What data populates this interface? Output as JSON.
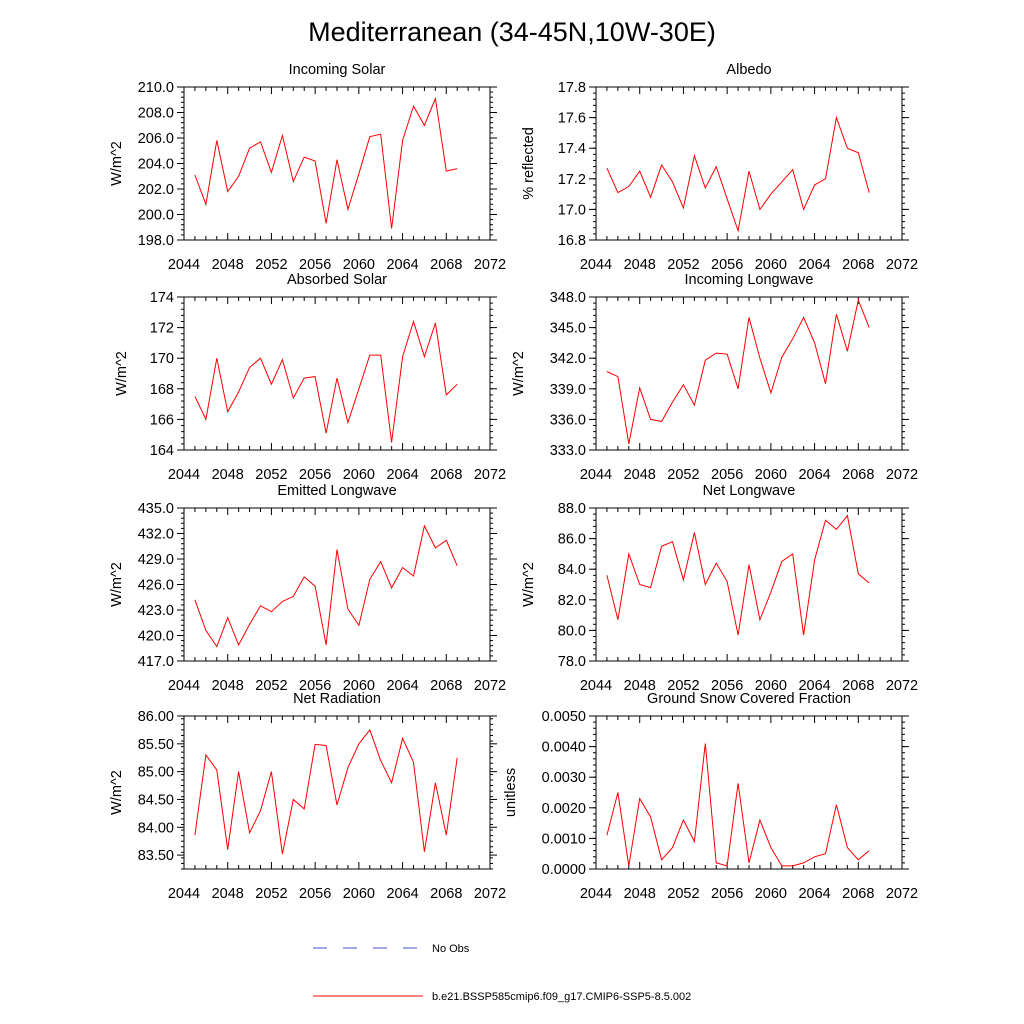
{
  "figure": {
    "title": "Mediterranean (34-45N,10W-30E)"
  },
  "colors": {
    "series": "#ff0000",
    "obs": "#4455cc",
    "axis": "#000000"
  },
  "legend": {
    "entries": [
      {
        "label": "No Obs",
        "style": "dashed",
        "color": "#4455cc"
      },
      {
        "label": "b.e21.BSSP585cmip6.f09_g17.CMIP6-SSP5-8.5.002",
        "style": "solid",
        "color": "#ff0000"
      }
    ]
  },
  "chart_data": [
    {
      "type": "line",
      "title": "Incoming Solar",
      "ylabel": "W/m^2",
      "xlim": [
        2044,
        2072
      ],
      "xticks": [
        2044,
        2048,
        2052,
        2056,
        2060,
        2064,
        2068,
        2072
      ],
      "ylim": [
        198,
        210
      ],
      "yticks": [
        "198.0",
        "200.0",
        "202.0",
        "204.0",
        "206.0",
        "208.0",
        "210.0"
      ],
      "x": [
        2045,
        2046,
        2047,
        2048,
        2049,
        2050,
        2051,
        2052,
        2053,
        2054,
        2055,
        2056,
        2057,
        2058,
        2059,
        2060,
        2061,
        2062,
        2063,
        2064,
        2065,
        2066,
        2067,
        2068,
        2069
      ],
      "series": [
        {
          "name": "b.e21.BSSP585cmip6.f09_g17.CMIP6-SSP5-8.5.002",
          "values": [
            203.1,
            200.8,
            205.8,
            201.8,
            203.0,
            205.2,
            205.7,
            203.3,
            206.2,
            202.6,
            204.5,
            204.2,
            199.3,
            204.3,
            200.4,
            203.2,
            206.1,
            206.3,
            198.9,
            205.8,
            208.5,
            207.0,
            209.1,
            203.4,
            203.6
          ]
        }
      ]
    },
    {
      "type": "line",
      "title": "Albedo",
      "ylabel": "% reflected",
      "xlim": [
        2044,
        2072
      ],
      "xticks": [
        2044,
        2048,
        2052,
        2056,
        2060,
        2064,
        2068,
        2072
      ],
      "ylim": [
        16.8,
        17.8
      ],
      "yticks": [
        "16.8",
        "17.0",
        "17.2",
        "17.4",
        "17.6",
        "17.8"
      ],
      "x": [
        2045,
        2046,
        2047,
        2048,
        2049,
        2050,
        2051,
        2052,
        2053,
        2054,
        2055,
        2056,
        2057,
        2058,
        2059,
        2060,
        2061,
        2062,
        2063,
        2064,
        2065,
        2066,
        2067,
        2068,
        2069
      ],
      "series": [
        {
          "name": "b.e21.BSSP585cmip6.f09_g17.CMIP6-SSP5-8.5.002",
          "values": [
            17.27,
            17.11,
            17.15,
            17.25,
            17.08,
            17.29,
            17.18,
            17.01,
            17.35,
            17.14,
            17.28,
            17.07,
            16.86,
            17.25,
            17.0,
            17.1,
            17.18,
            17.26,
            17.0,
            17.16,
            17.2,
            17.6,
            17.4,
            17.37,
            17.11
          ]
        }
      ]
    },
    {
      "type": "line",
      "title": "Absorbed Solar",
      "ylabel": "W/m^2",
      "xlim": [
        2044,
        2072
      ],
      "xticks": [
        2044,
        2048,
        2052,
        2056,
        2060,
        2064,
        2068,
        2072
      ],
      "ylim": [
        164,
        174
      ],
      "yticks": [
        "164",
        "166",
        "168",
        "170",
        "172",
        "174"
      ],
      "x": [
        2045,
        2046,
        2047,
        2048,
        2049,
        2050,
        2051,
        2052,
        2053,
        2054,
        2055,
        2056,
        2057,
        2058,
        2059,
        2060,
        2061,
        2062,
        2063,
        2064,
        2065,
        2066,
        2067,
        2068,
        2069
      ],
      "series": [
        {
          "name": "b.e21.BSSP585cmip6.f09_g17.CMIP6-SSP5-8.5.002",
          "values": [
            167.5,
            166.0,
            170.0,
            166.5,
            167.8,
            169.4,
            170.0,
            168.3,
            169.9,
            167.4,
            168.7,
            168.8,
            165.1,
            168.7,
            165.8,
            168.0,
            170.2,
            170.2,
            164.5,
            170.1,
            172.4,
            170.1,
            172.3,
            167.6,
            168.3
          ]
        }
      ]
    },
    {
      "type": "line",
      "title": "Incoming Longwave",
      "ylabel": "W/m^2",
      "xlim": [
        2044,
        2072
      ],
      "xticks": [
        2044,
        2048,
        2052,
        2056,
        2060,
        2064,
        2068,
        2072
      ],
      "ylim": [
        333,
        348
      ],
      "yticks": [
        "333.0",
        "336.0",
        "339.0",
        "342.0",
        "345.0",
        "348.0"
      ],
      "x": [
        2045,
        2046,
        2047,
        2048,
        2049,
        2050,
        2051,
        2052,
        2053,
        2054,
        2055,
        2056,
        2057,
        2058,
        2059,
        2060,
        2061,
        2062,
        2063,
        2064,
        2065,
        2066,
        2067,
        2068,
        2069
      ],
      "series": [
        {
          "name": "b.e21.BSSP585cmip6.f09_g17.CMIP6-SSP5-8.5.002",
          "values": [
            340.7,
            340.2,
            333.6,
            339.1,
            336.0,
            335.8,
            337.7,
            339.4,
            337.4,
            341.8,
            342.5,
            342.4,
            339.0,
            346.0,
            342.0,
            338.6,
            342.1,
            343.9,
            346.0,
            343.5,
            339.5,
            346.3,
            342.7,
            347.7,
            345.0
          ]
        }
      ]
    },
    {
      "type": "line",
      "title": "Emitted Longwave",
      "ylabel": "W/m^2",
      "xlim": [
        2044,
        2072
      ],
      "xticks": [
        2044,
        2048,
        2052,
        2056,
        2060,
        2064,
        2068,
        2072
      ],
      "ylim": [
        417,
        435
      ],
      "yticks": [
        "417.0",
        "420.0",
        "423.0",
        "426.0",
        "429.0",
        "432.0",
        "435.0"
      ],
      "x": [
        2045,
        2046,
        2047,
        2048,
        2049,
        2050,
        2051,
        2052,
        2053,
        2054,
        2055,
        2056,
        2057,
        2058,
        2059,
        2060,
        2061,
        2062,
        2063,
        2064,
        2065,
        2066,
        2067,
        2068,
        2069
      ],
      "series": [
        {
          "name": "b.e21.BSSP585cmip6.f09_g17.CMIP6-SSP5-8.5.002",
          "values": [
            424.2,
            420.6,
            418.7,
            422.1,
            418.9,
            421.3,
            423.5,
            422.8,
            424.0,
            424.6,
            426.9,
            425.8,
            418.9,
            430.1,
            423.1,
            421.2,
            426.6,
            428.7,
            425.6,
            428.0,
            427.0,
            432.9,
            430.3,
            431.2,
            428.2
          ]
        }
      ]
    },
    {
      "type": "line",
      "title": "Net Longwave",
      "ylabel": "W/m^2",
      "xlim": [
        2044,
        2072
      ],
      "xticks": [
        2044,
        2048,
        2052,
        2056,
        2060,
        2064,
        2068,
        2072
      ],
      "ylim": [
        78,
        88
      ],
      "yticks": [
        "78.0",
        "80.0",
        "82.0",
        "84.0",
        "86.0",
        "88.0"
      ],
      "x": [
        2045,
        2046,
        2047,
        2048,
        2049,
        2050,
        2051,
        2052,
        2053,
        2054,
        2055,
        2056,
        2057,
        2058,
        2059,
        2060,
        2061,
        2062,
        2063,
        2064,
        2065,
        2066,
        2067,
        2068,
        2069
      ],
      "series": [
        {
          "name": "b.e21.BSSP585cmip6.f09_g17.CMIP6-SSP5-8.5.002",
          "values": [
            83.6,
            80.7,
            85.0,
            83.0,
            82.8,
            85.5,
            85.8,
            83.3,
            86.4,
            83.0,
            84.4,
            83.2,
            79.7,
            84.3,
            80.7,
            82.5,
            84.5,
            85.0,
            79.7,
            84.6,
            87.2,
            86.6,
            87.5,
            83.7,
            83.1
          ]
        }
      ]
    },
    {
      "type": "line",
      "title": "Net Radiation",
      "ylabel": "W/m^2",
      "xlim": [
        2044,
        2072
      ],
      "xticks": [
        2044,
        2048,
        2052,
        2056,
        2060,
        2064,
        2068,
        2072
      ],
      "ylim": [
        83.25,
        86.0
      ],
      "yticks": [
        "83.50",
        "84.00",
        "84.50",
        "85.00",
        "85.50",
        "86.00"
      ],
      "x": [
        2045,
        2046,
        2047,
        2048,
        2049,
        2050,
        2051,
        2052,
        2053,
        2054,
        2055,
        2056,
        2057,
        2058,
        2059,
        2060,
        2061,
        2062,
        2063,
        2064,
        2065,
        2066,
        2067,
        2068,
        2069
      ],
      "series": [
        {
          "name": "b.e21.BSSP585cmip6.f09_g17.CMIP6-SSP5-8.5.002",
          "values": [
            83.86,
            85.3,
            85.03,
            83.6,
            85.0,
            83.9,
            84.3,
            85.0,
            83.52,
            84.5,
            84.33,
            85.49,
            85.47,
            84.4,
            85.07,
            85.5,
            85.75,
            85.2,
            84.8,
            85.6,
            85.17,
            83.56,
            84.8,
            83.86,
            85.25
          ]
        }
      ]
    },
    {
      "type": "line",
      "title": "Ground Snow Covered Fraction",
      "ylabel": "unitless",
      "xlim": [
        2044,
        2072
      ],
      "xticks": [
        2044,
        2048,
        2052,
        2056,
        2060,
        2064,
        2068,
        2072
      ],
      "ylim": [
        0,
        0.005
      ],
      "yticks": [
        "0.0000",
        "0.0010",
        "0.0020",
        "0.0030",
        "0.0040",
        "0.0050"
      ],
      "x": [
        2045,
        2046,
        2047,
        2048,
        2049,
        2050,
        2051,
        2052,
        2053,
        2054,
        2055,
        2056,
        2057,
        2058,
        2059,
        2060,
        2061,
        2062,
        2063,
        2064,
        2065,
        2066,
        2067,
        2068,
        2069
      ],
      "series": [
        {
          "name": "b.e21.BSSP585cmip6.f09_g17.CMIP6-SSP5-8.5.002",
          "values": [
            0.0011,
            0.0025,
            0.0001,
            0.0023,
            0.0017,
            0.0003,
            0.0007,
            0.0016,
            0.0009,
            0.0041,
            0.0002,
            0.0001,
            0.0028,
            0.0002,
            0.0016,
            0.0007,
            0.0001,
            0.0001,
            0.0002,
            0.0004,
            0.0005,
            0.0021,
            0.0007,
            0.0003,
            0.0006
          ]
        }
      ]
    }
  ]
}
